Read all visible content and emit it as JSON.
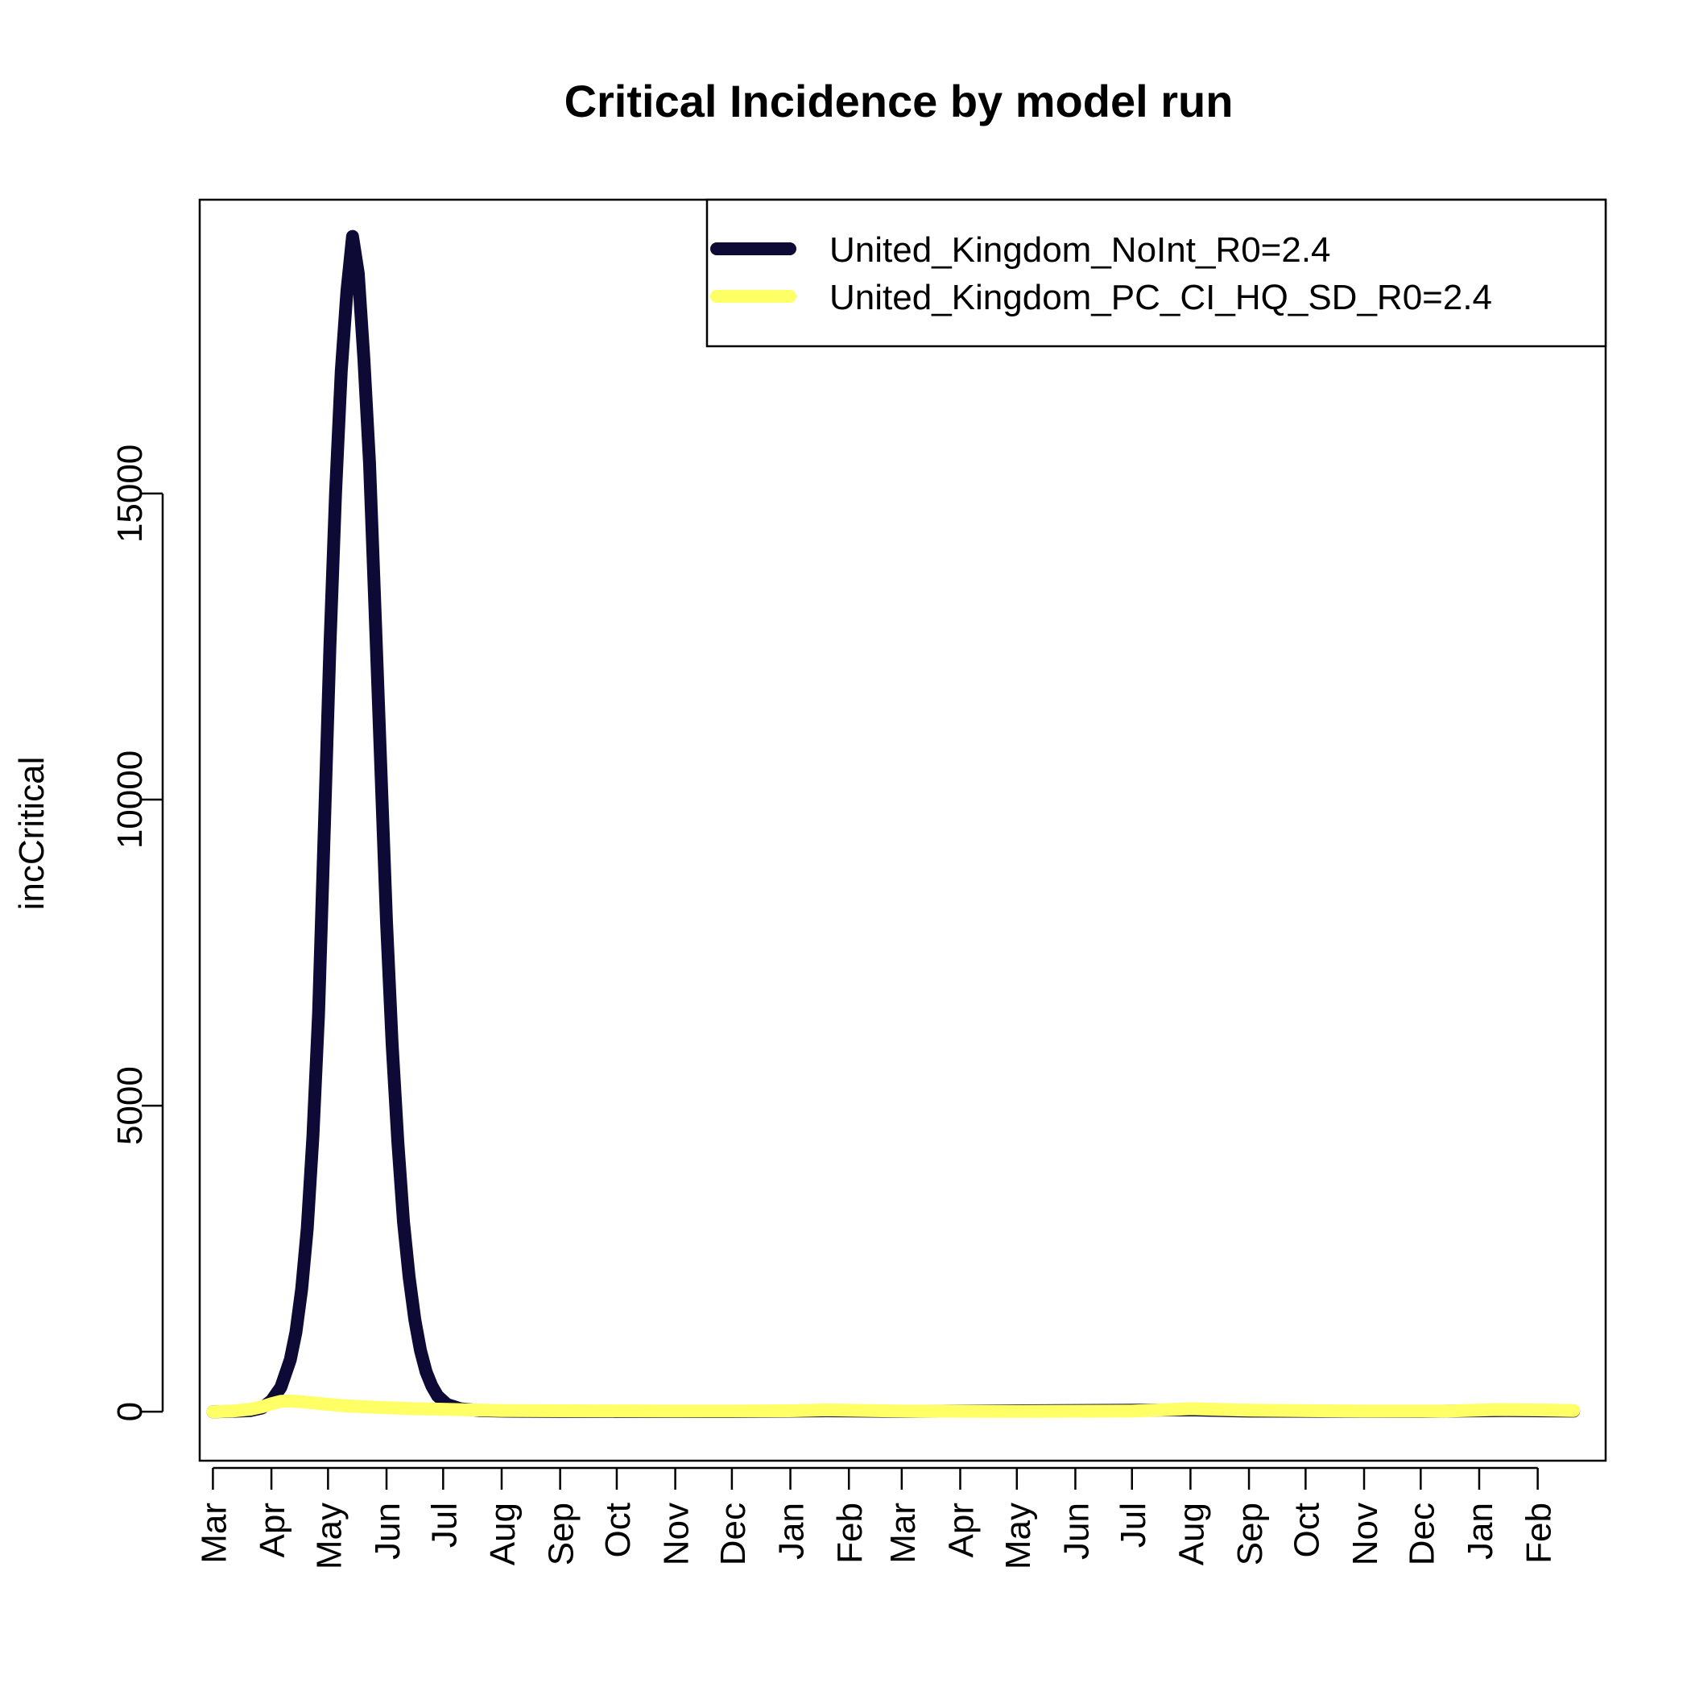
{
  "chart_data": {
    "type": "line",
    "title": "Critical Incidence by model run",
    "xlabel": "",
    "ylabel": "incCritical",
    "x_type": "date",
    "xlim": [
      "2020-02-23",
      "2022-03-09"
    ],
    "ylim": [
      -800,
      19800
    ],
    "grid": false,
    "legend_position": "top-right",
    "y_ticks": [
      0,
      5000,
      10000,
      15000
    ],
    "x_ticks": [
      {
        "date": "2020-03-01",
        "label": "Mar"
      },
      {
        "date": "2020-04-01",
        "label": "Apr"
      },
      {
        "date": "2020-05-01",
        "label": "May"
      },
      {
        "date": "2020-06-01",
        "label": "Jun"
      },
      {
        "date": "2020-07-01",
        "label": "Jul"
      },
      {
        "date": "2020-08-01",
        "label": "Aug"
      },
      {
        "date": "2020-09-01",
        "label": "Sep"
      },
      {
        "date": "2020-10-01",
        "label": "Oct"
      },
      {
        "date": "2020-11-01",
        "label": "Nov"
      },
      {
        "date": "2020-12-01",
        "label": "Dec"
      },
      {
        "date": "2021-01-01",
        "label": "Jan"
      },
      {
        "date": "2021-02-01",
        "label": "Feb"
      },
      {
        "date": "2021-03-01",
        "label": "Mar"
      },
      {
        "date": "2021-04-01",
        "label": "Apr"
      },
      {
        "date": "2021-05-01",
        "label": "May"
      },
      {
        "date": "2021-06-01",
        "label": "Jun"
      },
      {
        "date": "2021-07-01",
        "label": "Jul"
      },
      {
        "date": "2021-08-01",
        "label": "Aug"
      },
      {
        "date": "2021-09-01",
        "label": "Sep"
      },
      {
        "date": "2021-10-01",
        "label": "Oct"
      },
      {
        "date": "2021-11-01",
        "label": "Nov"
      },
      {
        "date": "2021-12-01",
        "label": "Dec"
      },
      {
        "date": "2022-01-01",
        "label": "Jan"
      },
      {
        "date": "2022-02-01",
        "label": "Feb"
      }
    ],
    "series": [
      {
        "name": "United_Kingdom_NoInt_R0=2.4",
        "color": "#0d0a36",
        "x": [
          "2020-03-01",
          "2020-03-11",
          "2020-03-21",
          "2020-03-27",
          "2020-04-01",
          "2020-04-06",
          "2020-04-11",
          "2020-04-14",
          "2020-04-17",
          "2020-04-20",
          "2020-04-23",
          "2020-04-26",
          "2020-04-29",
          "2020-05-02",
          "2020-05-05",
          "2020-05-08",
          "2020-05-11",
          "2020-05-14",
          "2020-05-17",
          "2020-05-20",
          "2020-05-23",
          "2020-05-26",
          "2020-05-29",
          "2020-06-01",
          "2020-06-04",
          "2020-06-07",
          "2020-06-10",
          "2020-06-13",
          "2020-06-16",
          "2020-06-19",
          "2020-06-22",
          "2020-06-25",
          "2020-06-28",
          "2020-07-03",
          "2020-07-10",
          "2020-07-20",
          "2020-08-01",
          "2020-09-01",
          "2020-12-01",
          "2021-01-20",
          "2021-03-01",
          "2021-08-01",
          "2021-09-01",
          "2021-12-01",
          "2022-01-15",
          "2022-02-20"
        ],
        "y": [
          0,
          5,
          20,
          60,
          180,
          400,
          850,
          1300,
          2000,
          3000,
          4500,
          6500,
          9500,
          12500,
          15000,
          17000,
          18300,
          19200,
          18600,
          17200,
          15500,
          13000,
          10500,
          8000,
          6000,
          4400,
          3100,
          2200,
          1500,
          1000,
          650,
          420,
          260,
          120,
          50,
          20,
          10,
          5,
          3,
          15,
          5,
          30,
          10,
          5,
          20,
          10
        ]
      },
      {
        "name": "United_Kingdom_PC_CI_HQ_SD_R0=2.4",
        "color": "#ffff66",
        "x": [
          "2020-03-01",
          "2020-03-11",
          "2020-03-21",
          "2020-03-27",
          "2020-04-01",
          "2020-04-06",
          "2020-04-11",
          "2020-04-16",
          "2020-04-21",
          "2020-05-01",
          "2020-05-11",
          "2020-05-21",
          "2020-06-01",
          "2020-06-15",
          "2020-07-01",
          "2020-07-15",
          "2020-08-01",
          "2020-09-01",
          "2020-11-01",
          "2020-12-01",
          "2021-01-01",
          "2021-01-20",
          "2021-03-01",
          "2021-05-01",
          "2021-07-01",
          "2021-07-25",
          "2021-08-01",
          "2021-09-01",
          "2021-11-01",
          "2021-12-15",
          "2022-01-10",
          "2022-02-01",
          "2022-02-20"
        ],
        "y": [
          0,
          10,
          40,
          80,
          130,
          170,
          175,
          165,
          150,
          120,
          95,
          80,
          65,
          50,
          40,
          30,
          20,
          15,
          10,
          10,
          15,
          30,
          10,
          5,
          10,
          40,
          50,
          25,
          10,
          10,
          35,
          30,
          20
        ]
      }
    ]
  }
}
